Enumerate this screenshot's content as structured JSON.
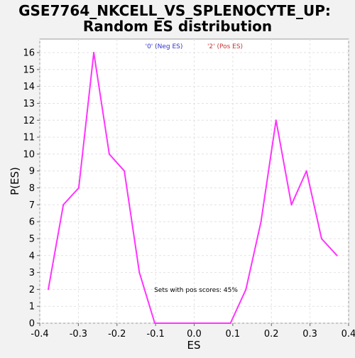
{
  "chart_data": {
    "type": "line",
    "title_line1": "GSE7764_NKCELL_VS_SPLENOCYTE_UP:",
    "title_line2": "Random ES distribution",
    "xlabel": "ES",
    "ylabel": "P(ES)",
    "xlim": [
      -0.4,
      0.4
    ],
    "ylim": [
      0,
      16.8
    ],
    "x_ticks": [
      -0.4,
      -0.3,
      -0.2,
      -0.1,
      0.0,
      0.1,
      0.2,
      0.3,
      0.4
    ],
    "x_tick_labels": [
      "-0.4",
      "-0.3",
      "-0.2",
      "-0.1",
      "0.0",
      "0.1",
      "0.2",
      "0.3",
      "0.4"
    ],
    "y_ticks": [
      0,
      1,
      2,
      3,
      4,
      5,
      6,
      7,
      8,
      9,
      10,
      11,
      12,
      13,
      14,
      15,
      16
    ],
    "y_tick_labels": [
      "0",
      "1",
      "2",
      "3",
      "4",
      "5",
      "6",
      "7",
      "8",
      "9",
      "10",
      "11",
      "12",
      "13",
      "14",
      "15",
      "16"
    ],
    "grid": true,
    "legend": {
      "placement": "top-center",
      "entries": [
        {
          "label": "'0' (Neg ES)",
          "color": "#3333cc"
        },
        {
          "label": "'2' (Pos ES)",
          "color": "#cc3333"
        }
      ]
    },
    "annotation": "Sets with pos scores: 45%",
    "series": [
      {
        "color": "#ff33ff",
        "x": [
          -0.378,
          -0.339,
          -0.299,
          -0.26,
          -0.22,
          -0.181,
          -0.142,
          -0.102,
          -0.063,
          -0.024,
          0.016,
          0.055,
          0.094,
          0.134,
          0.173,
          0.212,
          0.252,
          0.291,
          0.33,
          0.37
        ],
        "y": [
          2,
          7,
          8,
          16,
          10,
          9,
          3,
          0,
          0,
          0,
          0,
          0,
          0,
          2,
          6,
          12,
          7,
          9,
          5,
          4
        ]
      }
    ]
  }
}
